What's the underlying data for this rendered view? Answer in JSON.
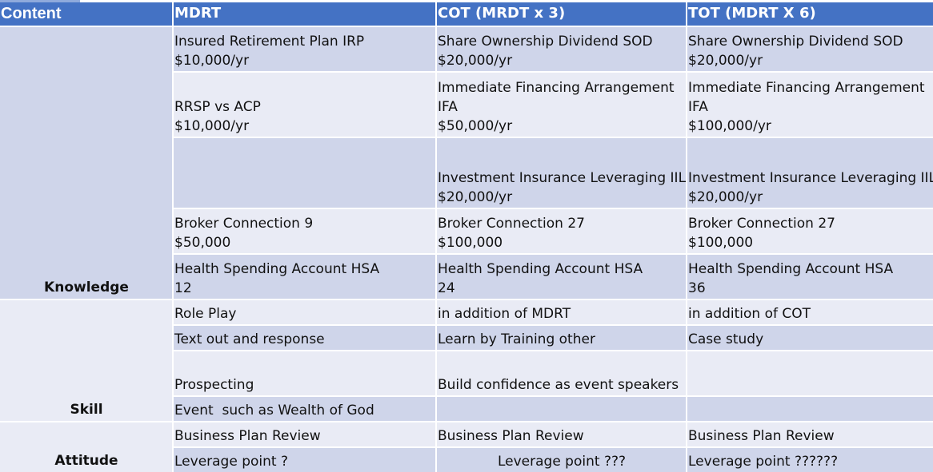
{
  "table": {
    "headers": [
      "Content",
      "MDRT",
      "COT (MRDT x 3)",
      "TOT (MDRT X 6)"
    ],
    "categories": {
      "knowledge": "Knowledge",
      "skill": "Skill",
      "attitude": "Attitude"
    },
    "rows": [
      {
        "mdrt": "Insured Retirement Plan IRP\n$10,000/yr",
        "cot": "Share Ownership Dividend SOD\n$20,000/yr",
        "tot": "Share Ownership Dividend SOD\n$20,000/yr"
      },
      {
        "mdrt": "RRSP vs ACP\n$10,000/yr",
        "cot": "Immediate Financing Arrangement\nIFA\n$50,000/yr",
        "tot": "Immediate Financing Arrangement\nIFA\n$100,000/yr"
      },
      {
        "mdrt": "",
        "cot": "Investment Insurance Leveraging IIL\n$20,000/yr",
        "tot": "Investment Insurance Leveraging IIL\n$20,000/yr"
      },
      {
        "mdrt": "Broker Connection 9\n$50,000",
        "cot": "Broker Connection 27\n$100,000",
        "tot": "Broker Connection 27\n$100,000"
      },
      {
        "mdrt": "Health Spending Account HSA\n12",
        "cot": "Health Spending Account HSA\n24",
        "tot": "Health Spending Account HSA\n36"
      },
      {
        "mdrt": "Role Play",
        "cot": "in addition of MDRT",
        "tot": "in addition of COT"
      },
      {
        "mdrt": "Text out and response",
        "cot": "Learn by Training other",
        "tot": "Case study"
      },
      {
        "mdrt": "Prospecting",
        "cot": "Build confidence as event speakers",
        "tot": ""
      },
      {
        "mdrt": "Event  such as Wealth of God",
        "cot": "",
        "tot": ""
      },
      {
        "mdrt": "Business Plan Review",
        "cot": "Business Plan Review",
        "tot": "Business Plan Review"
      },
      {
        "mdrt": "Leverage point ?",
        "cot": "Leverage point ???",
        "tot": "Leverage point ??????"
      }
    ]
  }
}
